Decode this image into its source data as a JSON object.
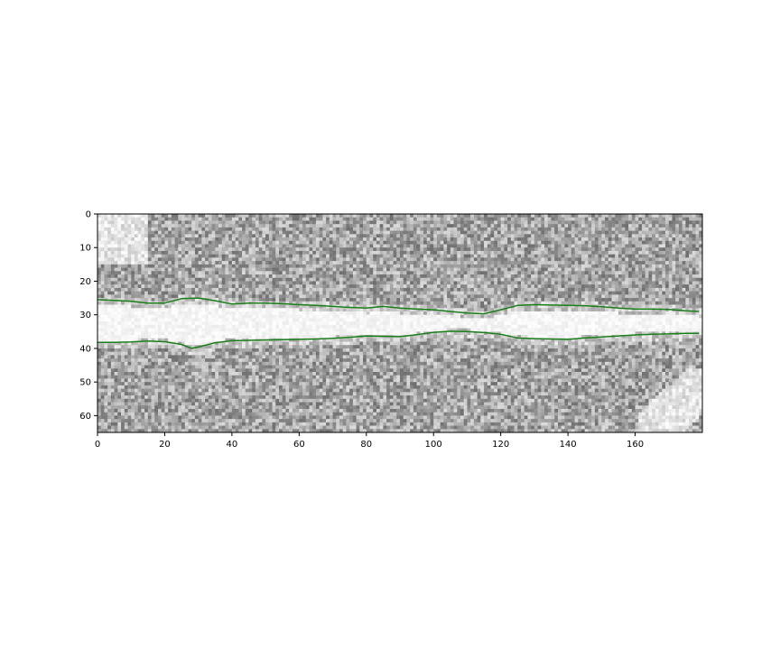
{
  "chart_data": {
    "type": "image-with-line-overlay",
    "title": "",
    "xlabel": "",
    "ylabel": "",
    "xlim": [
      0,
      180
    ],
    "ylim": [
      65,
      0
    ],
    "y_axis_inverted": true,
    "grid": false,
    "image": {
      "colormap": "gray",
      "columns": 180,
      "rows": 65,
      "description_bright_band_center_row": 32
    },
    "x_ticks": [
      0,
      20,
      40,
      60,
      80,
      100,
      120,
      140,
      160
    ],
    "y_ticks": [
      0,
      10,
      20,
      30,
      40,
      50,
      60
    ],
    "line_color": "#1a7f1a",
    "series": [
      {
        "x": [
          0,
          5,
          10,
          15,
          20,
          25,
          30,
          35,
          40,
          45,
          50,
          55,
          60,
          65,
          70,
          75,
          80,
          85,
          90,
          95,
          100,
          105,
          110,
          115,
          120,
          125,
          130,
          135,
          140,
          145,
          150,
          155,
          160,
          165,
          170,
          175,
          179
        ],
        "y": [
          25.5,
          25.7,
          26.0,
          26.5,
          26.5,
          25.2,
          25.0,
          25.8,
          26.8,
          26.5,
          26.5,
          26.7,
          27.0,
          27.2,
          27.5,
          27.8,
          28.0,
          27.5,
          28.0,
          28.3,
          28.5,
          29.0,
          29.5,
          29.7,
          28.5,
          27.2,
          27.0,
          27.1,
          27.2,
          27.3,
          27.6,
          28.0,
          28.3,
          28.3,
          28.4,
          28.8,
          29.0
        ]
      },
      {
        "x": [
          0,
          5,
          10,
          15,
          20,
          25,
          28,
          30,
          35,
          40,
          45,
          50,
          55,
          60,
          65,
          70,
          75,
          80,
          85,
          90,
          95,
          100,
          105,
          110,
          115,
          120,
          125,
          130,
          135,
          140,
          145,
          150,
          155,
          160,
          165,
          170,
          175,
          179
        ],
        "y": [
          38.2,
          38.2,
          38.1,
          37.8,
          38.0,
          38.8,
          40.0,
          39.6,
          38.3,
          37.7,
          37.6,
          37.5,
          37.4,
          37.3,
          37.2,
          37.0,
          36.7,
          36.3,
          36.4,
          36.5,
          35.9,
          35.2,
          34.9,
          35.0,
          35.3,
          35.8,
          36.9,
          37.1,
          37.2,
          37.3,
          36.9,
          36.6,
          36.3,
          36.0,
          35.8,
          35.7,
          35.5,
          35.5
        ]
      }
    ]
  }
}
